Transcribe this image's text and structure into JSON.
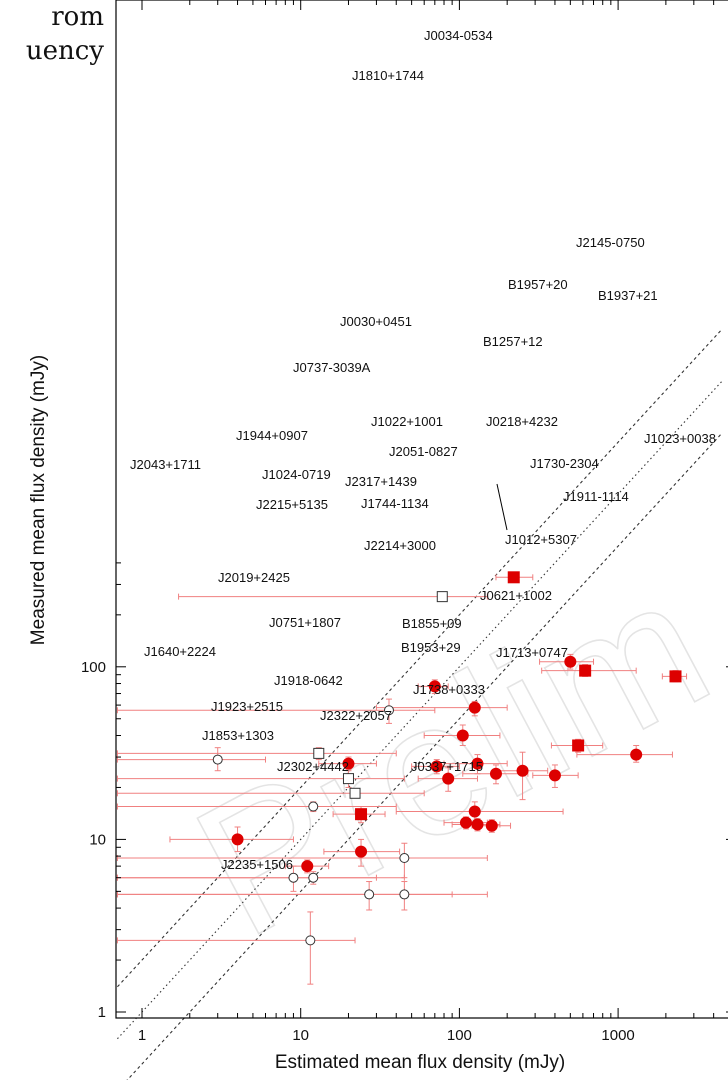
{
  "fragment": {
    "line1": "rom",
    "line2": "uency"
  },
  "watermark": "Prelim",
  "colors": {
    "accent": "#dd0000",
    "errorbar": "#f08080",
    "axis": "#000000"
  },
  "chart_data": {
    "type": "scatter",
    "xlabel": "Estimated mean flux density (mJy)",
    "ylabel": "Measured mean flux density (mJy)",
    "xscale": "log",
    "yscale": "log",
    "xlim": [
      0.7,
      4500
    ],
    "ylim": [
      1,
      400
    ],
    "xticks": [
      1,
      10,
      100,
      1000
    ],
    "xtick_labels": [
      "1",
      "10",
      "100",
      "1000"
    ],
    "yticks": [
      1,
      10,
      100
    ],
    "ytick_labels": [
      "1",
      "10",
      "100"
    ],
    "grid": false,
    "reference_lines": [
      {
        "style": "dotted",
        "relation": "y = x"
      },
      {
        "style": "dashed",
        "relation": "y = x / 2"
      },
      {
        "style": "dashed",
        "relation": "y = 2x"
      }
    ],
    "points": [
      {
        "name": "J0034-0534",
        "x": 220,
        "y": 330,
        "marker": "filled-square",
        "xerr": [
          170,
          290
        ],
        "yerr": [
          322,
          338
        ]
      },
      {
        "name": "J1810+1744",
        "x": 78,
        "y": 255,
        "marker": "open-square",
        "xerr": [
          1.7,
          150
        ],
        "yerr": [
          250,
          260
        ]
      },
      {
        "name": "J2145-0750",
        "x": 500,
        "y": 107,
        "marker": "filled-circle",
        "xerr": [
          320,
          700
        ],
        "yerr": [
          97,
          118
        ]
      },
      {
        "name": "B1957+20",
        "x": 620,
        "y": 95,
        "marker": "filled-square",
        "xerr": [
          330,
          1300
        ],
        "yerr": [
          88,
          103
        ]
      },
      {
        "name": "B1937+21",
        "x": 2300,
        "y": 88,
        "marker": "filled-square",
        "xerr": [
          1900,
          2700
        ],
        "yerr": [
          82,
          95
        ]
      },
      {
        "name": "J0030+0451",
        "x": 70,
        "y": 77,
        "marker": "filled-circle",
        "xerr": [
          55,
          85
        ],
        "yerr": [
          70,
          84
        ]
      },
      {
        "name": "B1257+12",
        "x": 125,
        "y": 58,
        "marker": "filled-circle",
        "xerr": [
          30,
          200
        ],
        "yerr": [
          52,
          63
        ]
      },
      {
        "name": "J0737-3039A",
        "x": 36,
        "y": 56,
        "marker": "open-circle",
        "xerr": [
          0.7,
          70
        ],
        "yerr": [
          47,
          65
        ]
      },
      {
        "name": "J1022+1001",
        "x": 105,
        "y": 40,
        "marker": "filled-circle",
        "xerr": [
          60,
          180
        ],
        "yerr": [
          35,
          46
        ]
      },
      {
        "name": "J0218+4232",
        "x": 560,
        "y": 35,
        "marker": "filled-square",
        "xerr": [
          380,
          800
        ],
        "yerr": [
          32,
          38
        ]
      },
      {
        "name": "J1023+0038",
        "x": 1300,
        "y": 31,
        "marker": "filled-circle",
        "xerr": [
          550,
          2200
        ],
        "yerr": [
          28,
          35
        ]
      },
      {
        "name": "J1944+0907",
        "x": 13,
        "y": 31.5,
        "marker": "open-square",
        "xerr": [
          0.7,
          40
        ],
        "yerr": [
          29,
          34
        ]
      },
      {
        "name": "J2043+1711",
        "x": 3,
        "y": 29,
        "marker": "open-circle",
        "xerr": [
          0.7,
          6
        ],
        "yerr": [
          25,
          34
        ]
      },
      {
        "name": "J1024-0719",
        "x": 20,
        "y": 27.5,
        "marker": "filled-circle",
        "xerr": [
          13,
          30
        ],
        "yerr": [
          25.5,
          30
        ]
      },
      {
        "name": "J2051-0827",
        "x": 72,
        "y": 26.5,
        "marker": "filled-circle",
        "xerr": [
          50,
          100
        ],
        "yerr": [
          24,
          29
        ]
      },
      {
        "name": "J2317+1439",
        "x": 130,
        "y": 27.5,
        "marker": "filled-circle",
        "xerr": [
          80,
          200
        ],
        "yerr": [
          24,
          31
        ]
      },
      {
        "name": "J1730-2304",
        "x": 250,
        "y": 25,
        "marker": "filled-circle",
        "xerr": [
          170,
          360
        ],
        "yerr": [
          17,
          32
        ]
      },
      {
        "name": "J1911-1114",
        "x": 400,
        "y": 23.5,
        "marker": "filled-circle",
        "xerr": [
          290,
          560
        ],
        "yerr": [
          20,
          27
        ]
      },
      {
        "name": "J1744-1134",
        "x": 85,
        "y": 22.5,
        "marker": "filled-circle",
        "xerr": [
          55,
          130
        ],
        "yerr": [
          19,
          26
        ]
      },
      {
        "name": "J1012+5307",
        "x": 170,
        "y": 24,
        "marker": "filled-circle",
        "xerr": [
          105,
          270
        ],
        "yerr": [
          21,
          27
        ]
      },
      {
        "name": "J2215+5135",
        "x": 20,
        "y": 22.5,
        "marker": "open-square",
        "xerr": [
          0.7,
          45
        ],
        "yerr": [
          20,
          25
        ]
      },
      {
        "name": "J2214+3000",
        "x": 22,
        "y": 18.5,
        "marker": "open-square",
        "xerr": [
          0.7,
          60
        ],
        "yerr": [
          17.5,
          19.5
        ]
      },
      {
        "name": "J2019+2425",
        "x": 12,
        "y": 15.5,
        "marker": "open-circle",
        "xerr": [
          0.7,
          40
        ],
        "yerr": [
          14.5,
          16.5
        ]
      },
      {
        "name": "J0621+1002",
        "x": 125,
        "y": 14.5,
        "marker": "filled-circle",
        "xerr": [
          40,
          450
        ],
        "yerr": [
          12.5,
          16.5
        ]
      },
      {
        "name": "J0751+1807",
        "x": 24,
        "y": 14,
        "marker": "filled-square",
        "xerr": [
          16,
          34
        ],
        "yerr": [
          12.5,
          15.5
        ]
      },
      {
        "name": "B1855+09",
        "x": 110,
        "y": 12.5,
        "marker": "filled-circle",
        "xerr": [
          80,
          150
        ],
        "yerr": [
          11.5,
          13.5
        ]
      },
      {
        "name": "B1953+29",
        "x": 130,
        "y": 12.2,
        "marker": "filled-circle",
        "xerr": [
          90,
          180
        ],
        "yerr": [
          11.2,
          13.2
        ]
      },
      {
        "name": "J1713+0747",
        "x": 160,
        "y": 12,
        "marker": "filled-circle",
        "xerr": [
          120,
          210
        ],
        "yerr": [
          11,
          13
        ]
      },
      {
        "name": "J1640+2224",
        "x": 4,
        "y": 10,
        "marker": "filled-circle",
        "xerr": [
          1.5,
          9
        ],
        "yerr": [
          8.5,
          11.8
        ]
      },
      {
        "name": "J1918-0642",
        "x": 24,
        "y": 8.5,
        "marker": "filled-circle",
        "xerr": [
          14,
          42
        ],
        "yerr": [
          7,
          10
        ]
      },
      {
        "name": "J1738+0333",
        "x": 45,
        "y": 7.8,
        "marker": "open-circle",
        "xerr": [
          0.7,
          150
        ],
        "yerr": [
          6,
          9.5
        ]
      },
      {
        "name": "J1923+2515",
        "x": 11,
        "y": 7,
        "marker": "filled-circle",
        "xerr": [
          8,
          15
        ],
        "yerr": [
          6.4,
          7.6
        ]
      },
      {
        "name": "J2322+2057",
        "x": 12,
        "y": 6,
        "marker": "open-circle",
        "xerr": [
          0.7,
          45
        ],
        "yerr": [
          5.5,
          6.5
        ]
      },
      {
        "name": "J1853+1303",
        "x": 9,
        "y": 6,
        "marker": "open-circle",
        "xerr": [
          0.7,
          30
        ],
        "yerr": [
          5,
          7
        ]
      },
      {
        "name": "J2302+4442",
        "x": 27,
        "y": 4.8,
        "marker": "open-circle",
        "xerr": [
          0.7,
          90
        ],
        "yerr": [
          3.9,
          5.7
        ]
      },
      {
        "name": "J0337+1715",
        "x": 45,
        "y": 4.8,
        "marker": "open-circle",
        "xerr": [
          0.7,
          150
        ],
        "yerr": [
          3.9,
          5.7
        ]
      },
      {
        "name": "J2235+1506",
        "x": 11.5,
        "y": 2.6,
        "marker": "open-circle",
        "xerr": [
          0.7,
          22
        ],
        "yerr": [
          1.45,
          3.8
        ]
      }
    ]
  }
}
